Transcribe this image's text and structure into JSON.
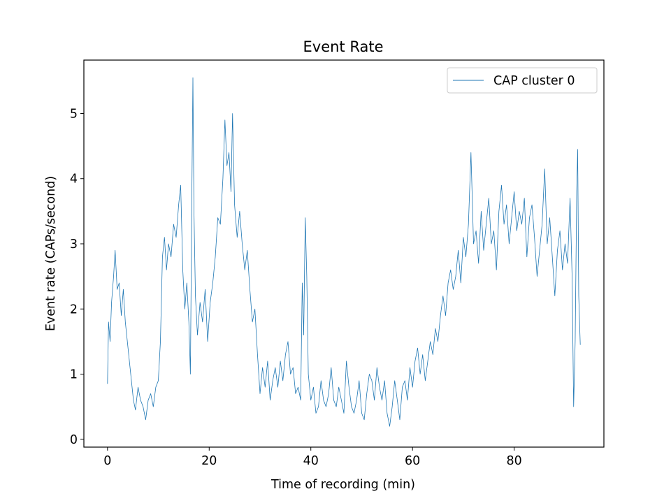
{
  "chart_data": {
    "type": "line",
    "title": "Event Rate",
    "xlabel": "Time of recording (min)",
    "ylabel": "Event rate (CAPs/second)",
    "xlim": [
      -4.65,
      97.65
    ],
    "ylim": [
      -0.12,
      5.82
    ],
    "xticks": [
      0,
      20,
      40,
      60,
      80
    ],
    "yticks": [
      0,
      1,
      2,
      3,
      4,
      5
    ],
    "legend": "upper-right",
    "grid": false,
    "series": [
      {
        "name": "CAP cluster 0",
        "color": "#1f77b4",
        "points": [
          [
            0.0,
            0.85
          ],
          [
            0.2,
            1.8
          ],
          [
            0.5,
            1.5
          ],
          [
            0.8,
            2.1
          ],
          [
            1.2,
            2.5
          ],
          [
            1.5,
            2.9
          ],
          [
            1.9,
            2.3
          ],
          [
            2.3,
            2.4
          ],
          [
            2.7,
            1.9
          ],
          [
            3.1,
            2.3
          ],
          [
            3.5,
            1.8
          ],
          [
            3.9,
            1.5
          ],
          [
            4.3,
            1.2
          ],
          [
            4.7,
            0.9
          ],
          [
            5.1,
            0.6
          ],
          [
            5.5,
            0.45
          ],
          [
            6.0,
            0.8
          ],
          [
            6.5,
            0.6
          ],
          [
            7.0,
            0.5
          ],
          [
            7.5,
            0.3
          ],
          [
            8.0,
            0.6
          ],
          [
            8.5,
            0.7
          ],
          [
            9.0,
            0.5
          ],
          [
            9.5,
            0.8
          ],
          [
            10.0,
            0.9
          ],
          [
            10.4,
            1.5
          ],
          [
            10.8,
            2.8
          ],
          [
            11.2,
            3.1
          ],
          [
            11.6,
            2.6
          ],
          [
            12.0,
            3.0
          ],
          [
            12.5,
            2.8
          ],
          [
            13.0,
            3.3
          ],
          [
            13.5,
            3.1
          ],
          [
            14.0,
            3.6
          ],
          [
            14.4,
            3.9
          ],
          [
            14.8,
            2.6
          ],
          [
            15.2,
            2.0
          ],
          [
            15.6,
            2.4
          ],
          [
            16.0,
            1.8
          ],
          [
            16.3,
            1.0
          ],
          [
            16.6,
            3.8
          ],
          [
            16.8,
            5.55
          ],
          [
            17.0,
            3.5
          ],
          [
            17.3,
            2.2
          ],
          [
            17.7,
            1.6
          ],
          [
            18.2,
            2.1
          ],
          [
            18.7,
            1.8
          ],
          [
            19.2,
            2.3
          ],
          [
            19.7,
            1.5
          ],
          [
            20.2,
            2.1
          ],
          [
            20.7,
            2.4
          ],
          [
            21.2,
            2.8
          ],
          [
            21.7,
            3.4
          ],
          [
            22.2,
            3.3
          ],
          [
            22.7,
            4.0
          ],
          [
            23.1,
            4.9
          ],
          [
            23.5,
            4.2
          ],
          [
            23.9,
            4.4
          ],
          [
            24.3,
            3.8
          ],
          [
            24.6,
            5.0
          ],
          [
            25.0,
            3.6
          ],
          [
            25.5,
            3.1
          ],
          [
            26.0,
            3.5
          ],
          [
            26.5,
            3.0
          ],
          [
            27.0,
            2.6
          ],
          [
            27.5,
            2.9
          ],
          [
            28.0,
            2.3
          ],
          [
            28.5,
            1.8
          ],
          [
            29.0,
            2.0
          ],
          [
            29.5,
            1.3
          ],
          [
            30.0,
            0.7
          ],
          [
            30.5,
            1.1
          ],
          [
            31.0,
            0.8
          ],
          [
            31.5,
            1.2
          ],
          [
            32.0,
            0.6
          ],
          [
            32.5,
            0.9
          ],
          [
            33.0,
            1.1
          ],
          [
            33.5,
            0.8
          ],
          [
            34.0,
            1.2
          ],
          [
            34.5,
            0.9
          ],
          [
            35.0,
            1.3
          ],
          [
            35.5,
            1.5
          ],
          [
            36.0,
            1.0
          ],
          [
            36.5,
            1.1
          ],
          [
            37.0,
            0.7
          ],
          [
            37.5,
            0.8
          ],
          [
            38.0,
            0.6
          ],
          [
            38.3,
            2.4
          ],
          [
            38.6,
            1.6
          ],
          [
            38.9,
            3.4
          ],
          [
            39.2,
            2.5
          ],
          [
            39.5,
            1.0
          ],
          [
            40.0,
            0.6
          ],
          [
            40.5,
            0.8
          ],
          [
            41.0,
            0.4
          ],
          [
            41.5,
            0.5
          ],
          [
            42.0,
            0.9
          ],
          [
            42.5,
            0.6
          ],
          [
            43.0,
            0.5
          ],
          [
            43.5,
            0.7
          ],
          [
            44.0,
            1.1
          ],
          [
            44.5,
            0.6
          ],
          [
            45.0,
            0.5
          ],
          [
            45.5,
            0.8
          ],
          [
            46.0,
            0.6
          ],
          [
            46.5,
            0.4
          ],
          [
            47.0,
            1.2
          ],
          [
            47.5,
            0.8
          ],
          [
            48.0,
            0.5
          ],
          [
            48.5,
            0.4
          ],
          [
            49.0,
            0.6
          ],
          [
            49.5,
            0.9
          ],
          [
            50.0,
            0.4
          ],
          [
            50.5,
            0.3
          ],
          [
            51.0,
            0.7
          ],
          [
            51.5,
            1.0
          ],
          [
            52.0,
            0.9
          ],
          [
            52.5,
            0.6
          ],
          [
            53.0,
            1.1
          ],
          [
            53.5,
            0.8
          ],
          [
            54.0,
            0.6
          ],
          [
            54.5,
            0.9
          ],
          [
            55.0,
            0.4
          ],
          [
            55.5,
            0.2
          ],
          [
            56.0,
            0.5
          ],
          [
            56.5,
            0.9
          ],
          [
            57.0,
            0.6
          ],
          [
            57.5,
            0.3
          ],
          [
            58.0,
            0.8
          ],
          [
            58.5,
            0.9
          ],
          [
            59.0,
            0.6
          ],
          [
            59.5,
            1.1
          ],
          [
            60.0,
            0.8
          ],
          [
            60.5,
            1.2
          ],
          [
            61.0,
            1.4
          ],
          [
            61.5,
            1.0
          ],
          [
            62.0,
            1.3
          ],
          [
            62.5,
            0.9
          ],
          [
            63.0,
            1.2
          ],
          [
            63.5,
            1.5
          ],
          [
            64.0,
            1.3
          ],
          [
            64.5,
            1.7
          ],
          [
            65.0,
            1.5
          ],
          [
            65.5,
            1.9
          ],
          [
            66.0,
            2.2
          ],
          [
            66.5,
            1.9
          ],
          [
            67.0,
            2.4
          ],
          [
            67.5,
            2.6
          ],
          [
            68.0,
            2.3
          ],
          [
            68.5,
            2.5
          ],
          [
            69.0,
            2.9
          ],
          [
            69.5,
            2.4
          ],
          [
            70.0,
            3.1
          ],
          [
            70.5,
            2.8
          ],
          [
            71.0,
            3.3
          ],
          [
            71.5,
            4.4
          ],
          [
            72.0,
            3.0
          ],
          [
            72.5,
            3.2
          ],
          [
            73.0,
            2.7
          ],
          [
            73.5,
            3.5
          ],
          [
            74.0,
            2.9
          ],
          [
            74.5,
            3.3
          ],
          [
            75.0,
            3.7
          ],
          [
            75.5,
            3.0
          ],
          [
            76.0,
            3.2
          ],
          [
            76.5,
            2.6
          ],
          [
            77.0,
            3.5
          ],
          [
            77.5,
            3.9
          ],
          [
            78.0,
            3.3
          ],
          [
            78.5,
            3.6
          ],
          [
            79.0,
            3.0
          ],
          [
            79.5,
            3.4
          ],
          [
            80.0,
            3.8
          ],
          [
            80.5,
            3.2
          ],
          [
            81.0,
            3.5
          ],
          [
            81.5,
            3.3
          ],
          [
            82.0,
            3.7
          ],
          [
            82.5,
            2.8
          ],
          [
            83.0,
            3.4
          ],
          [
            83.5,
            3.6
          ],
          [
            84.0,
            3.1
          ],
          [
            84.5,
            2.5
          ],
          [
            85.0,
            2.9
          ],
          [
            85.5,
            3.3
          ],
          [
            86.0,
            4.15
          ],
          [
            86.5,
            3.0
          ],
          [
            87.0,
            3.4
          ],
          [
            87.5,
            2.8
          ],
          [
            88.0,
            2.2
          ],
          [
            88.5,
            2.9
          ],
          [
            89.0,
            3.2
          ],
          [
            89.5,
            2.6
          ],
          [
            90.0,
            3.0
          ],
          [
            90.5,
            2.7
          ],
          [
            91.0,
            3.7
          ],
          [
            91.4,
            2.5
          ],
          [
            91.7,
            0.5
          ],
          [
            92.0,
            1.5
          ],
          [
            92.3,
            3.8
          ],
          [
            92.5,
            4.45
          ],
          [
            92.7,
            2.2
          ],
          [
            93.0,
            1.45
          ]
        ]
      }
    ]
  }
}
